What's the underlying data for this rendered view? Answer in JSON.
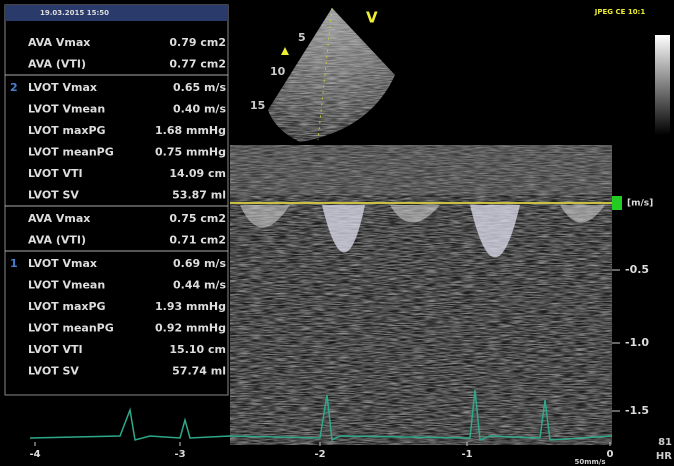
{
  "header": {
    "datetime": "19.03.2015 15:50",
    "mode": "JPEG CE 10:1"
  },
  "sector": {
    "label": "V",
    "depths": [
      "5",
      "10",
      "15"
    ]
  },
  "panel": {
    "groups": [
      {
        "rows": [
          [
            "AVA Vmax",
            "0.79 cm2"
          ],
          [
            "AVA (VTI)",
            "0.77 cm2"
          ]
        ]
      },
      {
        "marker": "2",
        "rows": [
          [
            "LVOT Vmax",
            "0.65 m/s"
          ],
          [
            "LVOT Vmean",
            "0.40 m/s"
          ],
          [
            "LVOT maxPG",
            "1.68 mmHg"
          ],
          [
            "LVOT meanPG",
            "0.75 mmHg"
          ],
          [
            "LVOT VTI",
            "14.09 cm"
          ],
          [
            "LVOT SV",
            "53.87 ml"
          ]
        ]
      },
      {
        "rows": [
          [
            "AVA Vmax",
            "0.75 cm2"
          ],
          [
            "AVA (VTI)",
            "0.71 cm2"
          ]
        ]
      },
      {
        "marker": "1",
        "rows": [
          [
            "LVOT Vmax",
            "0.69 m/s"
          ],
          [
            "LVOT Vmean",
            "0.44 m/s"
          ],
          [
            "LVOT maxPG",
            "1.93 mmHg"
          ],
          [
            "LVOT meanPG",
            "0.92 mmHg"
          ],
          [
            "LVOT VTI",
            "15.10 cm"
          ],
          [
            "LVOT SV",
            "57.74 ml"
          ]
        ]
      }
    ]
  },
  "scale": {
    "unit": "[m/s]",
    "labels": [
      "-0.5",
      "-1.0",
      "-1.5"
    ]
  },
  "time_axis": {
    "labels": [
      "-4",
      "-3",
      "-2",
      "-1",
      "0"
    ],
    "speed": "50mm/s"
  },
  "hr": {
    "value": "81",
    "label": "HR"
  }
}
